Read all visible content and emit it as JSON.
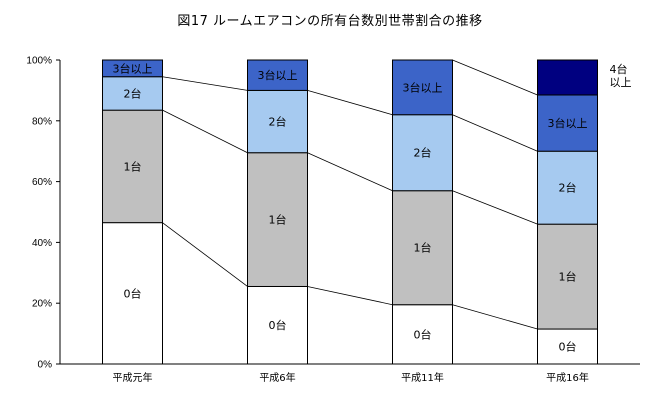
{
  "chart_data": {
    "type": "bar",
    "stacked": true,
    "title": "図17 ルームエアコンの所有台数別世帯割合の推移",
    "categories": [
      "平成元年",
      "平成6年",
      "平成11年",
      "平成16年"
    ],
    "series": [
      {
        "name": "0台",
        "label": "0台",
        "color": "#ffffff",
        "text_color": "#000000",
        "values": [
          46.5,
          25.5,
          19.5,
          11.5
        ]
      },
      {
        "name": "1台",
        "label": "1台",
        "color": "#c0c0c0",
        "text_color": "#000000",
        "values": [
          37,
          44,
          37.5,
          34.5
        ]
      },
      {
        "name": "2台",
        "label": "2台",
        "color": "#a6caf0",
        "text_color": "#000000",
        "values": [
          11,
          20.5,
          25,
          24
        ]
      },
      {
        "name": "3台以上",
        "label": "3台以上",
        "color": "#3c64c8",
        "text_color": "#000000",
        "values": [
          5.5,
          10,
          18,
          18.5
        ]
      },
      {
        "name": "4台以上",
        "label": "4台以上",
        "color": "#000080",
        "text_color": "#000000",
        "values": [
          0,
          0,
          0,
          11.5
        ]
      }
    ],
    "side_label_lines": [
      "4台",
      "以上"
    ],
    "y_ticks": [
      "0%",
      "20%",
      "40%",
      "60%",
      "80%",
      "100%"
    ],
    "y_tick_values": [
      0,
      20,
      40,
      60,
      80,
      100
    ],
    "ylim": [
      0,
      100
    ],
    "xlabel": "",
    "ylabel": ""
  }
}
